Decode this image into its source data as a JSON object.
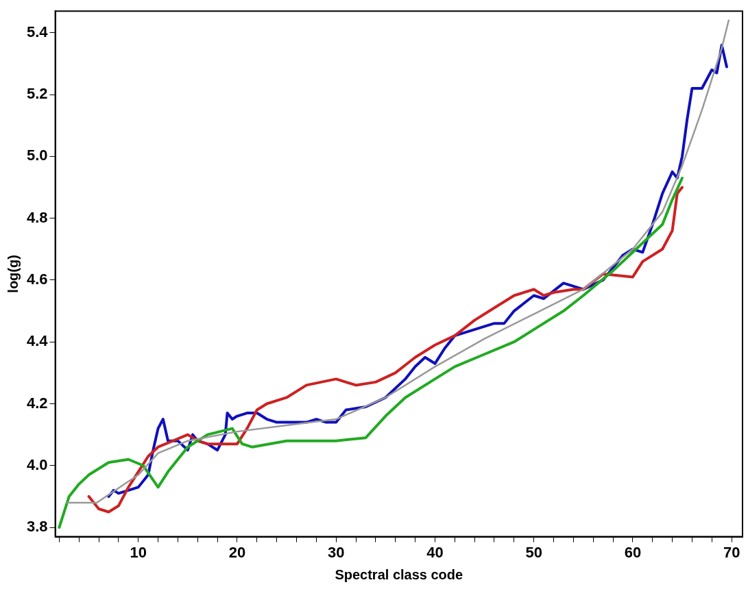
{
  "chart_data": {
    "type": "line",
    "xlabel": "Spectral class code",
    "ylabel": "log(g)",
    "xlim": [
      1.6,
      71.1
    ],
    "ylim": [
      3.77,
      5.47
    ],
    "xticks": [
      {
        "value": 2,
        "label": null
      },
      {
        "value": 4,
        "label": null
      },
      {
        "value": 6,
        "label": null
      },
      {
        "value": 8,
        "label": null
      },
      10,
      {
        "value": 12,
        "label": null
      },
      {
        "value": 14,
        "label": null
      },
      {
        "value": 16,
        "label": null
      },
      {
        "value": 18,
        "label": null
      },
      20,
      {
        "value": 22,
        "label": null
      },
      {
        "value": 24,
        "label": null
      },
      {
        "value": 26,
        "label": null
      },
      {
        "value": 28,
        "label": null
      },
      30,
      {
        "value": 32,
        "label": null
      },
      {
        "value": 34,
        "label": null
      },
      {
        "value": 36,
        "label": null
      },
      {
        "value": 38,
        "label": null
      },
      40,
      {
        "value": 42,
        "label": null
      },
      {
        "value": 44,
        "label": null
      },
      {
        "value": 46,
        "label": null
      },
      {
        "value": 48,
        "label": null
      },
      50,
      {
        "value": 52,
        "label": null
      },
      {
        "value": 54,
        "label": null
      },
      {
        "value": 56,
        "label": null
      },
      {
        "value": 58,
        "label": null
      },
      60,
      {
        "value": 62,
        "label": null
      },
      {
        "value": 64,
        "label": null
      },
      {
        "value": 66,
        "label": null
      },
      {
        "value": 68,
        "label": null
      },
      70
    ],
    "yticks": [
      {
        "value": 3.8,
        "label": "3.8"
      },
      {
        "value": 4.0,
        "label": "4.0"
      },
      {
        "value": 4.2,
        "label": "4.2"
      },
      {
        "value": 4.4,
        "label": "4.4"
      },
      {
        "value": 4.6,
        "label": "4.6"
      },
      {
        "value": 4.8,
        "label": "4.8"
      },
      {
        "value": 5.0,
        "label": "5.0"
      },
      {
        "value": 5.2,
        "label": "5.2"
      },
      {
        "value": 5.4,
        "label": "5.4"
      }
    ],
    "grid": false,
    "legend": false,
    "marker": "none",
    "line_style": "solid",
    "series": [
      {
        "color": "#999999",
        "x": [
          2.8,
          5.8,
          10,
          12,
          15,
          20,
          25,
          30,
          35,
          40,
          45,
          50,
          55,
          60,
          63,
          65,
          67,
          69,
          69.7
        ],
        "values": [
          3.88,
          3.88,
          3.97,
          4.04,
          4.08,
          4.11,
          4.13,
          4.15,
          4.22,
          4.32,
          4.41,
          4.49,
          4.57,
          4.7,
          4.82,
          4.97,
          5.15,
          5.35,
          5.44
        ]
      },
      {
        "color": "#22aa22",
        "x": [
          2,
          3,
          4,
          5,
          7,
          9,
          10.5,
          12,
          13,
          15,
          17,
          19.5,
          20.5,
          21.5,
          25,
          30,
          33,
          35,
          37,
          40,
          42,
          45,
          48,
          50,
          53,
          55,
          58,
          60,
          63,
          64,
          65
        ],
        "values": [
          3.8,
          3.9,
          3.94,
          3.97,
          4.01,
          4.02,
          4.0,
          3.93,
          3.98,
          4.06,
          4.1,
          4.12,
          4.07,
          4.06,
          4.08,
          4.08,
          4.09,
          4.16,
          4.22,
          4.28,
          4.32,
          4.36,
          4.4,
          4.44,
          4.5,
          4.55,
          4.63,
          4.69,
          4.78,
          4.86,
          4.93
        ]
      },
      {
        "color": "#cc2222",
        "x": [
          5,
          6,
          7,
          8,
          9,
          10,
          11,
          12,
          15,
          16,
          17,
          20,
          21,
          22,
          23,
          25,
          27,
          30,
          32,
          34,
          36,
          38,
          40,
          42,
          44,
          46,
          48,
          50,
          51,
          52,
          54,
          55,
          57,
          60,
          61,
          63,
          64,
          64.5,
          65
        ],
        "values": [
          3.9,
          3.86,
          3.85,
          3.87,
          3.93,
          3.98,
          4.03,
          4.06,
          4.1,
          4.08,
          4.07,
          4.07,
          4.12,
          4.18,
          4.2,
          4.22,
          4.26,
          4.28,
          4.26,
          4.27,
          4.3,
          4.35,
          4.39,
          4.42,
          4.47,
          4.51,
          4.55,
          4.57,
          4.55,
          4.56,
          4.57,
          4.57,
          4.62,
          4.61,
          4.66,
          4.7,
          4.76,
          4.88,
          4.9
        ]
      },
      {
        "color": "#1010bb",
        "x": [
          7,
          7.5,
          8,
          10,
          11,
          11.5,
          12,
          12.5,
          13,
          14,
          15,
          15.5,
          16,
          17,
          18,
          18.8,
          19,
          19.5,
          20,
          21,
          22,
          23,
          24,
          27,
          28,
          29,
          30,
          31,
          33,
          35,
          37,
          38,
          39,
          40,
          41,
          42,
          44,
          46,
          47,
          48,
          50,
          51,
          53,
          54,
          55,
          57,
          59,
          60,
          61,
          62,
          63,
          64,
          64.5,
          65,
          65.5,
          66,
          67,
          68,
          68.5,
          69,
          69.5
        ],
        "values": [
          3.9,
          3.92,
          3.91,
          3.93,
          3.97,
          4.05,
          4.12,
          4.15,
          4.08,
          4.08,
          4.05,
          4.1,
          4.08,
          4.07,
          4.05,
          4.1,
          4.17,
          4.15,
          4.16,
          4.17,
          4.17,
          4.15,
          4.14,
          4.14,
          4.15,
          4.14,
          4.14,
          4.18,
          4.19,
          4.22,
          4.28,
          4.32,
          4.35,
          4.33,
          4.38,
          4.42,
          4.44,
          4.46,
          4.46,
          4.5,
          4.55,
          4.54,
          4.59,
          4.58,
          4.57,
          4.6,
          4.68,
          4.7,
          4.69,
          4.78,
          4.88,
          4.95,
          4.93,
          5.0,
          5.12,
          5.22,
          5.22,
          5.28,
          5.27,
          5.36,
          5.29
        ]
      }
    ]
  }
}
